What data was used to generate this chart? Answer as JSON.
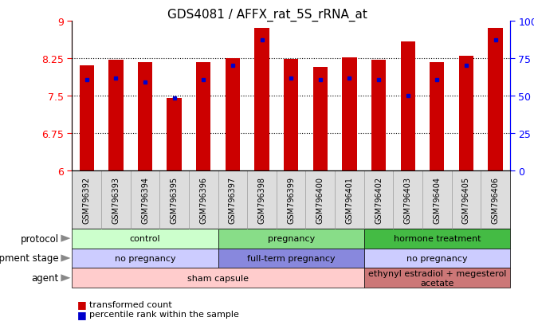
{
  "title": "GDS4081 / AFFX_rat_5S_rRNA_at",
  "samples": [
    "GSM796392",
    "GSM796393",
    "GSM796394",
    "GSM796395",
    "GSM796396",
    "GSM796397",
    "GSM796398",
    "GSM796399",
    "GSM796400",
    "GSM796401",
    "GSM796402",
    "GSM796403",
    "GSM796404",
    "GSM796405",
    "GSM796406"
  ],
  "bar_values": [
    8.1,
    8.22,
    8.17,
    7.46,
    8.17,
    8.25,
    8.86,
    8.24,
    8.08,
    8.26,
    8.22,
    8.58,
    8.17,
    8.29,
    8.86
  ],
  "percentile_values": [
    7.82,
    7.85,
    7.78,
    7.45,
    7.82,
    8.1,
    8.62,
    7.85,
    7.82,
    7.85,
    7.82,
    7.5,
    7.82,
    8.1,
    8.62
  ],
  "bar_color": "#cc0000",
  "percentile_color": "#0000cc",
  "ymin": 6,
  "ymax": 9,
  "yticks": [
    6,
    6.75,
    7.5,
    8.25,
    9
  ],
  "ytick_labels": [
    "6",
    "6.75",
    "7.5",
    "8.25",
    "9"
  ],
  "right_yticks": [
    0,
    25,
    50,
    75,
    100
  ],
  "right_ytick_labels": [
    "0",
    "25",
    "50",
    "75",
    "100%"
  ],
  "grid_values": [
    6.75,
    7.5,
    8.25
  ],
  "protocol_groups": [
    {
      "label": "control",
      "start": 0,
      "end": 4,
      "color": "#ccffcc"
    },
    {
      "label": "pregnancy",
      "start": 5,
      "end": 9,
      "color": "#88dd88"
    },
    {
      "label": "hormone treatment",
      "start": 10,
      "end": 14,
      "color": "#44bb44"
    }
  ],
  "dev_stage_groups": [
    {
      "label": "no pregnancy",
      "start": 0,
      "end": 4,
      "color": "#ccccff"
    },
    {
      "label": "full-term pregnancy",
      "start": 5,
      "end": 9,
      "color": "#8888dd"
    },
    {
      "label": "no pregnancy",
      "start": 10,
      "end": 14,
      "color": "#ccccff"
    }
  ],
  "agent_groups": [
    {
      "label": "sham capsule",
      "start": 0,
      "end": 9,
      "color": "#ffcccc"
    },
    {
      "label": "ethynyl estradiol + megesterol\nacetate",
      "start": 10,
      "end": 14,
      "color": "#cc7777"
    }
  ],
  "row_labels": [
    "protocol",
    "development stage",
    "agent"
  ],
  "legend_items": [
    {
      "color": "#cc0000",
      "label": "transformed count"
    },
    {
      "color": "#0000cc",
      "label": "percentile rank within the sample"
    }
  ],
  "bar_width": 0.5,
  "base_value": 6
}
